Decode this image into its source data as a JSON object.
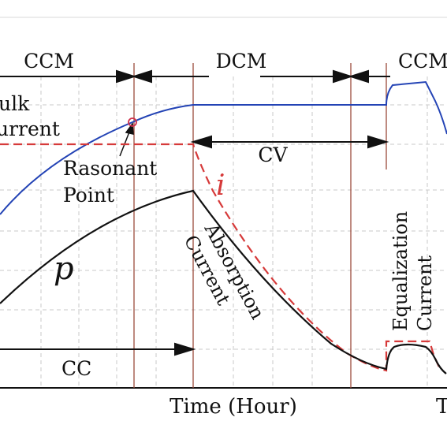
{
  "diagram": {
    "modes": {
      "ccm_left": "CCM",
      "dcm": "DCM",
      "ccm_right": "CCM"
    },
    "bulk_label_line1": "ulk",
    "bulk_label_line2": "urrent",
    "resonant_label_line1": "Rasonant",
    "resonant_label_line2": "Point",
    "cv_label": "CV",
    "cc_label": "CC",
    "i_label": "i",
    "p_label": "p",
    "absorption_line1": "Absorption",
    "absorption_line2": "Current",
    "equalization_line1": "Equalization",
    "equalization_line2": "Current",
    "x_axis_label": "Time (Hour)",
    "x_axis_label_right": "T",
    "colors": {
      "blue_curve": "#2343b5",
      "red_dashed": "#d63a3a",
      "black_curve": "#111111",
      "vertical_lines": "#9b4b3c",
      "grid": "#c9c9c9",
      "resonant_marker": "#d0304a"
    }
  }
}
